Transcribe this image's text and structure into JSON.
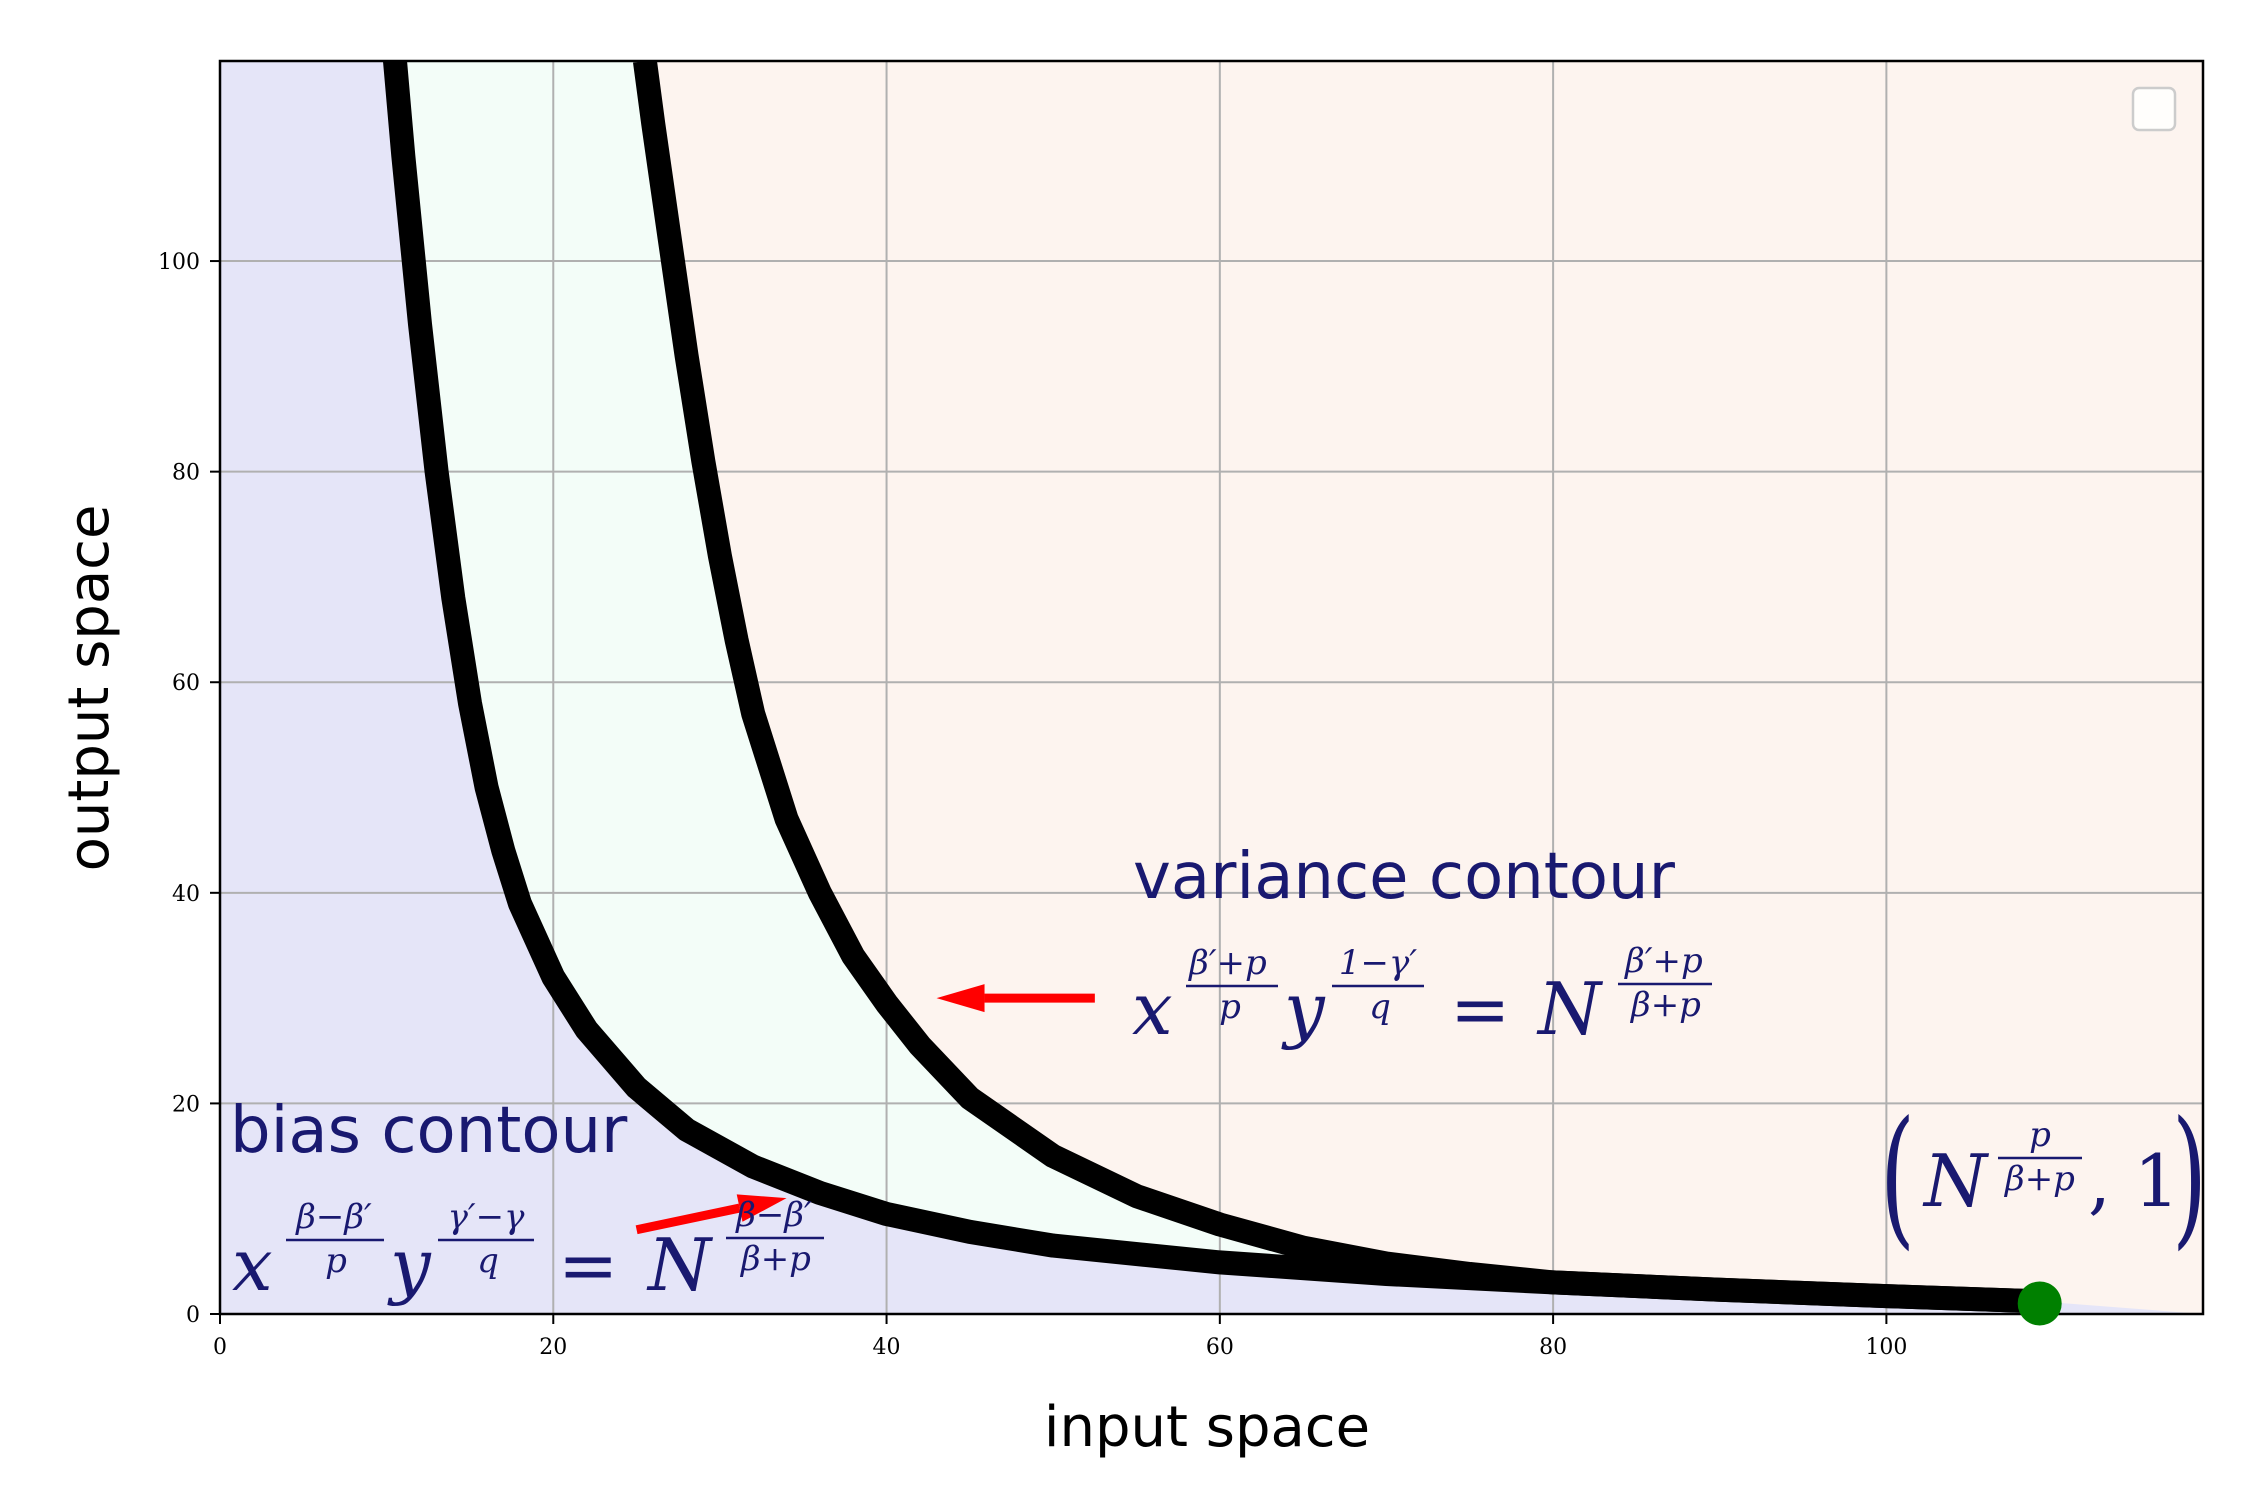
{
  "chart_data": {
    "type": "line",
    "title": "",
    "xlabel": "input space",
    "ylabel": "output space",
    "xlim": [
      0,
      119
    ],
    "ylim": [
      0,
      119
    ],
    "xticks": [
      0,
      20,
      40,
      60,
      80,
      100
    ],
    "yticks": [
      0,
      20,
      40,
      60,
      80,
      100
    ],
    "grid": true,
    "legend": {
      "placement": "top-right",
      "entries": []
    },
    "colors": {
      "bias_region": "#e5e5f8",
      "band_region": "#f3fdf8",
      "variance_region": "#fdf4ef",
      "contour": "#000000",
      "annotation_text": "#191970",
      "arrow": "#ff0000",
      "point": "#008000",
      "grid": "#b0b0b0"
    },
    "series": [
      {
        "x": [
          10.5,
          11,
          12,
          13,
          14,
          15,
          16,
          17,
          18,
          20,
          22,
          25,
          28,
          32,
          36,
          40,
          45,
          50,
          60,
          70,
          80,
          90,
          100,
          109.2
        ],
        "y": [
          119,
          110,
          94,
          80,
          68,
          58,
          50,
          44,
          39,
          32,
          27,
          21.5,
          17.5,
          14,
          11.5,
          9.5,
          7.8,
          6.5,
          4.9,
          3.8,
          3.0,
          2.3,
          1.7,
          1.2
        ]
      },
      {
        "x": [
          25.5,
          26,
          27,
          28,
          29,
          30,
          31,
          32,
          34,
          36,
          38,
          40,
          42,
          45,
          50,
          55,
          60,
          65,
          70,
          75,
          80,
          90,
          100,
          109.2
        ],
        "y": [
          119,
          113,
          102,
          91,
          81,
          72,
          64,
          57,
          47,
          40,
          34,
          29.5,
          25.5,
          20.5,
          15,
          11.2,
          8.5,
          6.3,
          4.8,
          3.8,
          3.0,
          2.3,
          1.7,
          1.2
        ]
      }
    ],
    "point": {
      "x": 109.2,
      "y": 1.0
    },
    "annotations": [
      {
        "id": "variance",
        "title": "variance contour",
        "equation": {
          "base1": "x",
          "exp1_num": "β′+p",
          "exp1_den": "p",
          "base2": "y",
          "exp2_num": "1−γ′",
          "exp2_den": "q",
          "eq": "=",
          "base3": "N",
          "exp3_num": "β′+p",
          "exp3_den": "β+p"
        },
        "arrow": {
          "x_from": 52.5,
          "y_from": 30.0,
          "x_to": 43.0,
          "y_to": 30.0
        }
      },
      {
        "id": "bias",
        "title": "bias contour",
        "equation": {
          "base1": "x",
          "exp1_num": "β−β′",
          "exp1_den": "p",
          "base2": "y",
          "exp2_num": "γ′−γ",
          "exp2_den": "q",
          "eq": "=",
          "base3": "N",
          "exp3_num": "β−β′",
          "exp3_den": "β+p"
        },
        "arrow": {
          "x_from": 25.0,
          "y_from": 8.0,
          "x_to": 34.0,
          "y_to": 11.0
        }
      },
      {
        "id": "point",
        "label": {
          "open": "(",
          "base": "N",
          "exp_num": "p",
          "exp_den": "β+p",
          "rest": ", 1",
          "close": ")"
        }
      }
    ]
  }
}
